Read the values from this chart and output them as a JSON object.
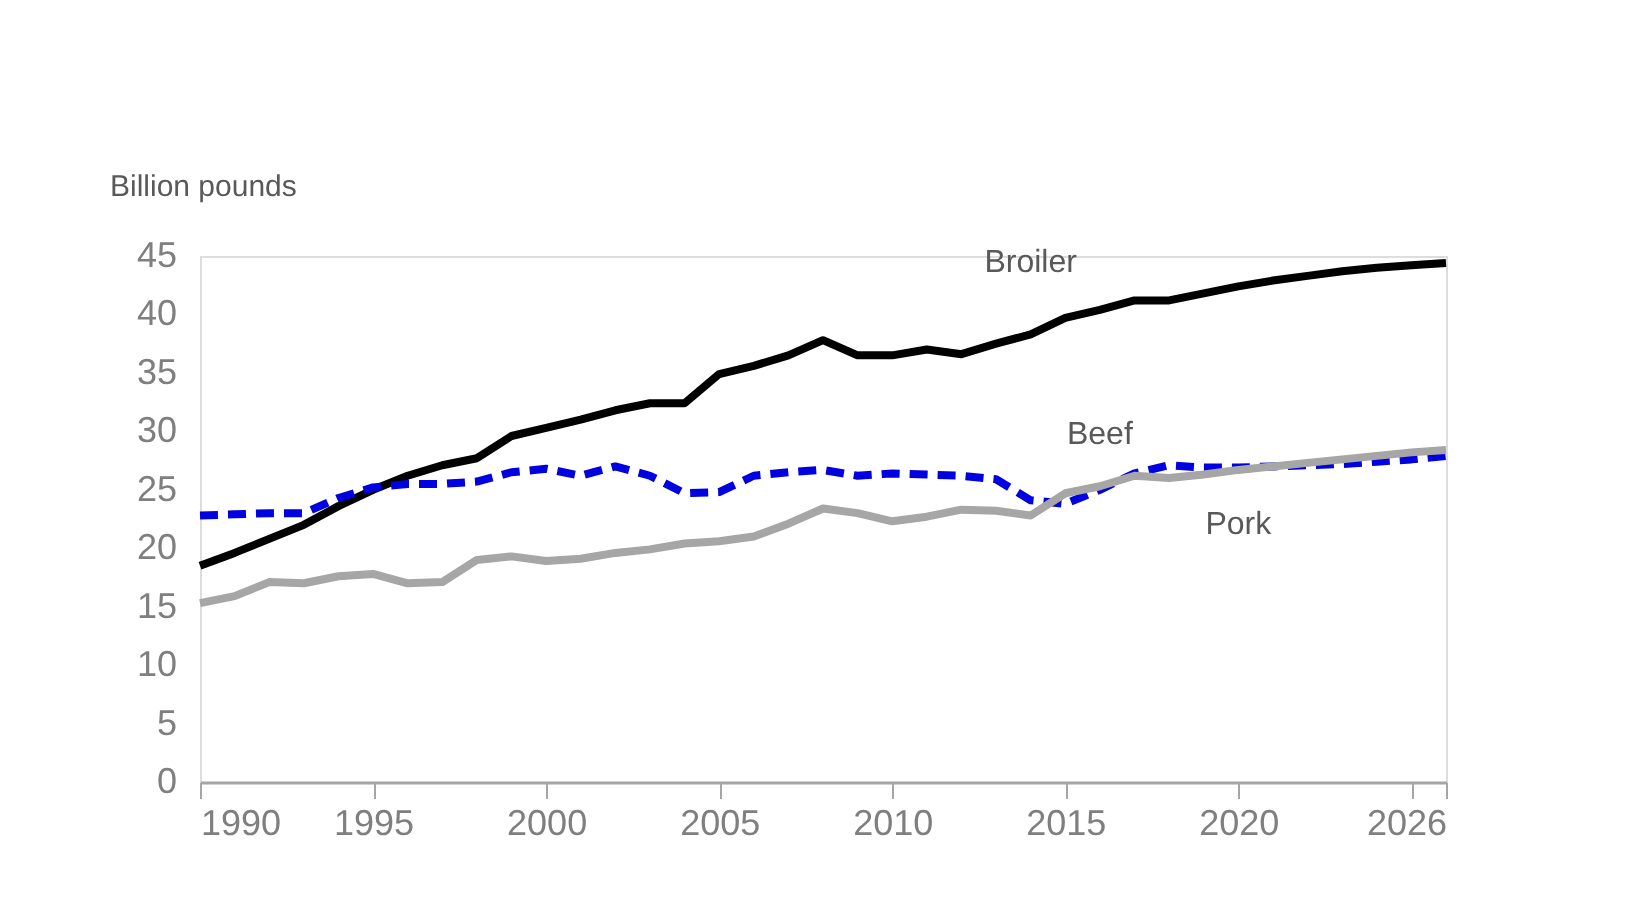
{
  "chart_data": {
    "type": "line",
    "ylabel": "Billion pounds",
    "x": [
      1990,
      1991,
      1992,
      1993,
      1994,
      1995,
      1996,
      1997,
      1998,
      1999,
      2000,
      2001,
      2002,
      2003,
      2004,
      2005,
      2006,
      2007,
      2008,
      2009,
      2010,
      2011,
      2012,
      2013,
      2014,
      2015,
      2016,
      2017,
      2018,
      2019,
      2020,
      2021,
      2022,
      2023,
      2024,
      2025,
      2026
    ],
    "series": [
      {
        "name": "Broiler",
        "color": "#000000",
        "line_style": "solid",
        "values": [
          18.5,
          19.6,
          20.8,
          22.0,
          23.6,
          25.0,
          26.2,
          27.1,
          27.7,
          29.6,
          30.3,
          31.0,
          31.8,
          32.4,
          32.4,
          34.9,
          35.6,
          36.5,
          37.8,
          36.5,
          36.5,
          37.0,
          36.6,
          37.5,
          38.3,
          39.7,
          40.4,
          41.2,
          41.2,
          41.8,
          42.4,
          42.9,
          43.3,
          43.7,
          44.0,
          44.2,
          44.4
        ]
      },
      {
        "name": "Beef",
        "color": "#0000e0",
        "line_style": "dashed",
        "values": [
          22.8,
          22.9,
          23.0,
          23.0,
          24.3,
          25.2,
          25.5,
          25.5,
          25.7,
          26.5,
          26.8,
          26.2,
          27.0,
          26.2,
          24.7,
          24.8,
          26.2,
          26.5,
          26.7,
          26.2,
          26.4,
          26.3,
          26.2,
          25.9,
          24.1,
          23.8,
          25.0,
          26.4,
          27.1,
          26.9,
          26.9,
          27.0,
          27.1,
          27.2,
          27.4,
          27.6,
          27.9
        ]
      },
      {
        "name": "Pork",
        "color": "#a6a6a6",
        "line_style": "solid",
        "values": [
          15.3,
          15.9,
          17.1,
          17.0,
          17.6,
          17.8,
          17.0,
          17.1,
          19.0,
          19.3,
          18.9,
          19.1,
          19.6,
          19.9,
          20.4,
          20.6,
          21.0,
          22.1,
          23.4,
          23.0,
          22.3,
          22.7,
          23.3,
          23.2,
          22.8,
          24.7,
          25.3,
          26.2,
          26.0,
          26.3,
          26.7,
          27.0,
          27.3,
          27.6,
          27.9,
          28.2,
          28.4
        ]
      }
    ],
    "xlim": [
      1990,
      2026
    ],
    "xticks": [
      1990,
      1995,
      2000,
      2005,
      2010,
      2015,
      2020,
      {
        "value": 2025,
        "label": null
      },
      2026
    ],
    "ylim": [
      0,
      45
    ],
    "yticks": [
      0,
      5,
      10,
      15,
      20,
      25,
      30,
      35,
      40,
      45
    ],
    "grid": false,
    "legend": false
  }
}
